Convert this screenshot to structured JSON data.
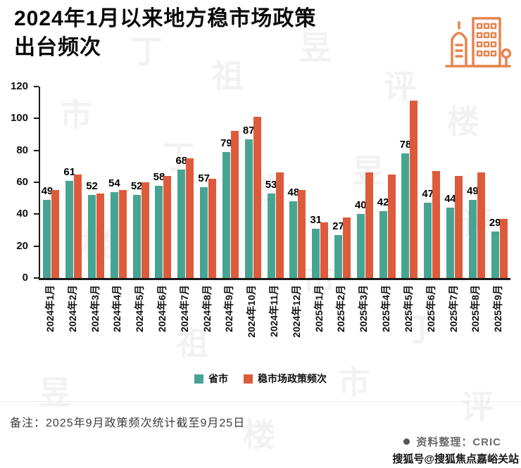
{
  "page": {
    "title_line1": "2024年1月以来地方稳市场政策",
    "title_line2": "出台频次",
    "footnote": "备注：2025年9月政策频次统计截至9月25日",
    "source_credit": "资料整理：CRIC",
    "sohu_watermark": "搜狐号@搜狐焦点嘉峪关站",
    "diagonal_watermark_text": "丁祖昱评楼市",
    "colors": {
      "icon_orange": "#E8834E",
      "axis": "#1a1a1a"
    }
  },
  "chart_data": {
    "type": "bar",
    "title": "2024年1月以来地方稳市场政策出台频次",
    "categories": [
      "2024年1月",
      "2024年2月",
      "2024年3月",
      "2024年4月",
      "2024年5月",
      "2024年6月",
      "2024年7月",
      "2024年8月",
      "2024年9月",
      "2024年10月",
      "2024年11月",
      "2024年12月",
      "2025年1月",
      "2025年2月",
      "2025年3月",
      "2025年4月",
      "2025年5月",
      "2025年6月",
      "2025年7月",
      "2025年8月",
      "2025年9月"
    ],
    "series": [
      {
        "name": "省市",
        "color": "#47A494",
        "show_labels": true,
        "values": [
          49,
          61,
          52,
          54,
          52,
          58,
          68,
          57,
          79,
          87,
          53,
          48,
          31,
          27,
          40,
          42,
          78,
          47,
          44,
          49,
          29
        ]
      },
      {
        "name": "稳市场政策频次",
        "color": "#DD5B3B",
        "show_labels": false,
        "values": [
          55,
          65,
          53,
          55,
          60,
          64,
          75,
          62,
          92,
          101,
          66,
          55,
          35,
          38,
          66,
          65,
          111,
          67,
          64,
          66,
          37
        ]
      }
    ],
    "xlabel": "",
    "ylabel": "",
    "ylim": [
      0,
      120
    ],
    "yticks": [
      0,
      20,
      40,
      60,
      80,
      100,
      120
    ],
    "grid": false,
    "legend_position": "bottom"
  }
}
